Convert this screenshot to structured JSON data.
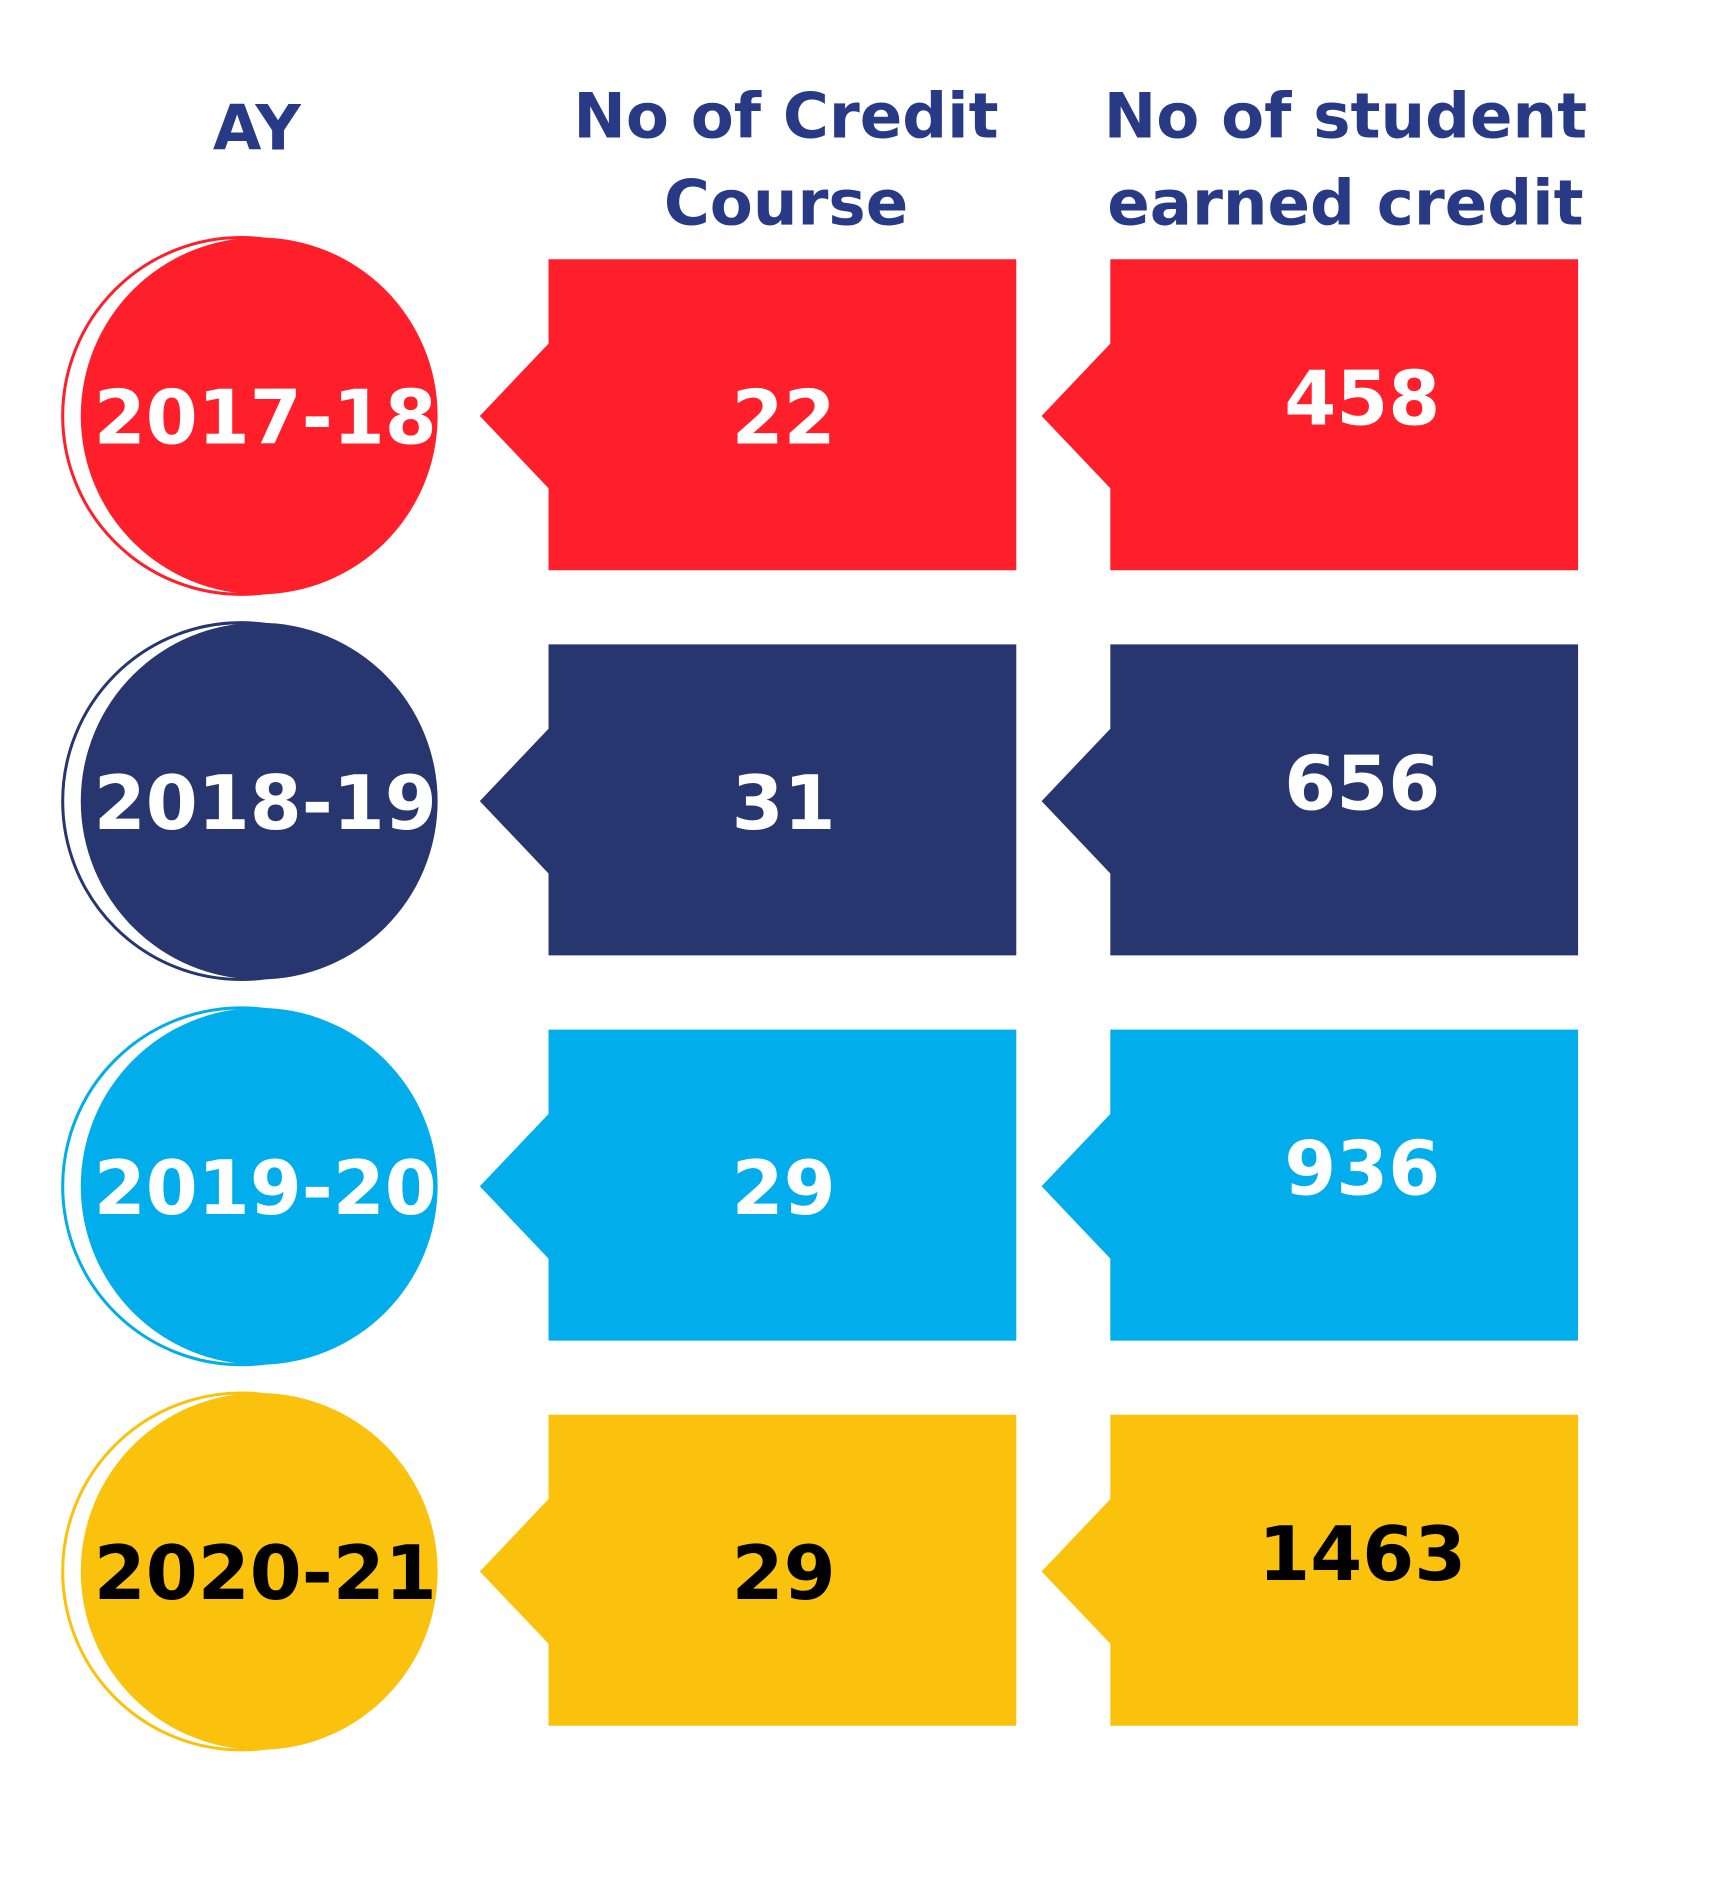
{
  "headers": {
    "year": "AY",
    "courses": [
      "No of Credit",
      "Course"
    ],
    "students": [
      "No of student",
      "earned credit"
    ]
  },
  "rows": [
    {
      "year": "2017-18",
      "courses": "22",
      "students": "458"
    },
    {
      "year": "2018-19",
      "courses": "31",
      "students": "656"
    },
    {
      "year": "2019-20",
      "courses": "29",
      "students": "936"
    },
    {
      "year": "2020-21",
      "courses": "29",
      "students": "1463"
    }
  ]
}
